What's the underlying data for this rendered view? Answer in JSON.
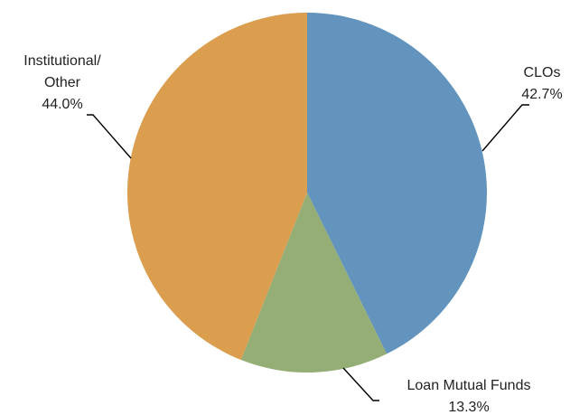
{
  "chart_data": {
    "type": "pie",
    "title": "",
    "legend": "none",
    "slices": [
      {
        "label": "CLOs",
        "value": 42.7,
        "value_label": "42.7%",
        "color": "#6394BE"
      },
      {
        "label": "Loan Mutual Funds",
        "value": 13.3,
        "value_label": "13.3%",
        "color": "#94AE75"
      },
      {
        "label": "Institutional/ Other",
        "label_lines": [
          "Institutional/",
          "Other"
        ],
        "value": 44.0,
        "value_label": "44.0%",
        "color": "#DB9E4F"
      }
    ]
  }
}
